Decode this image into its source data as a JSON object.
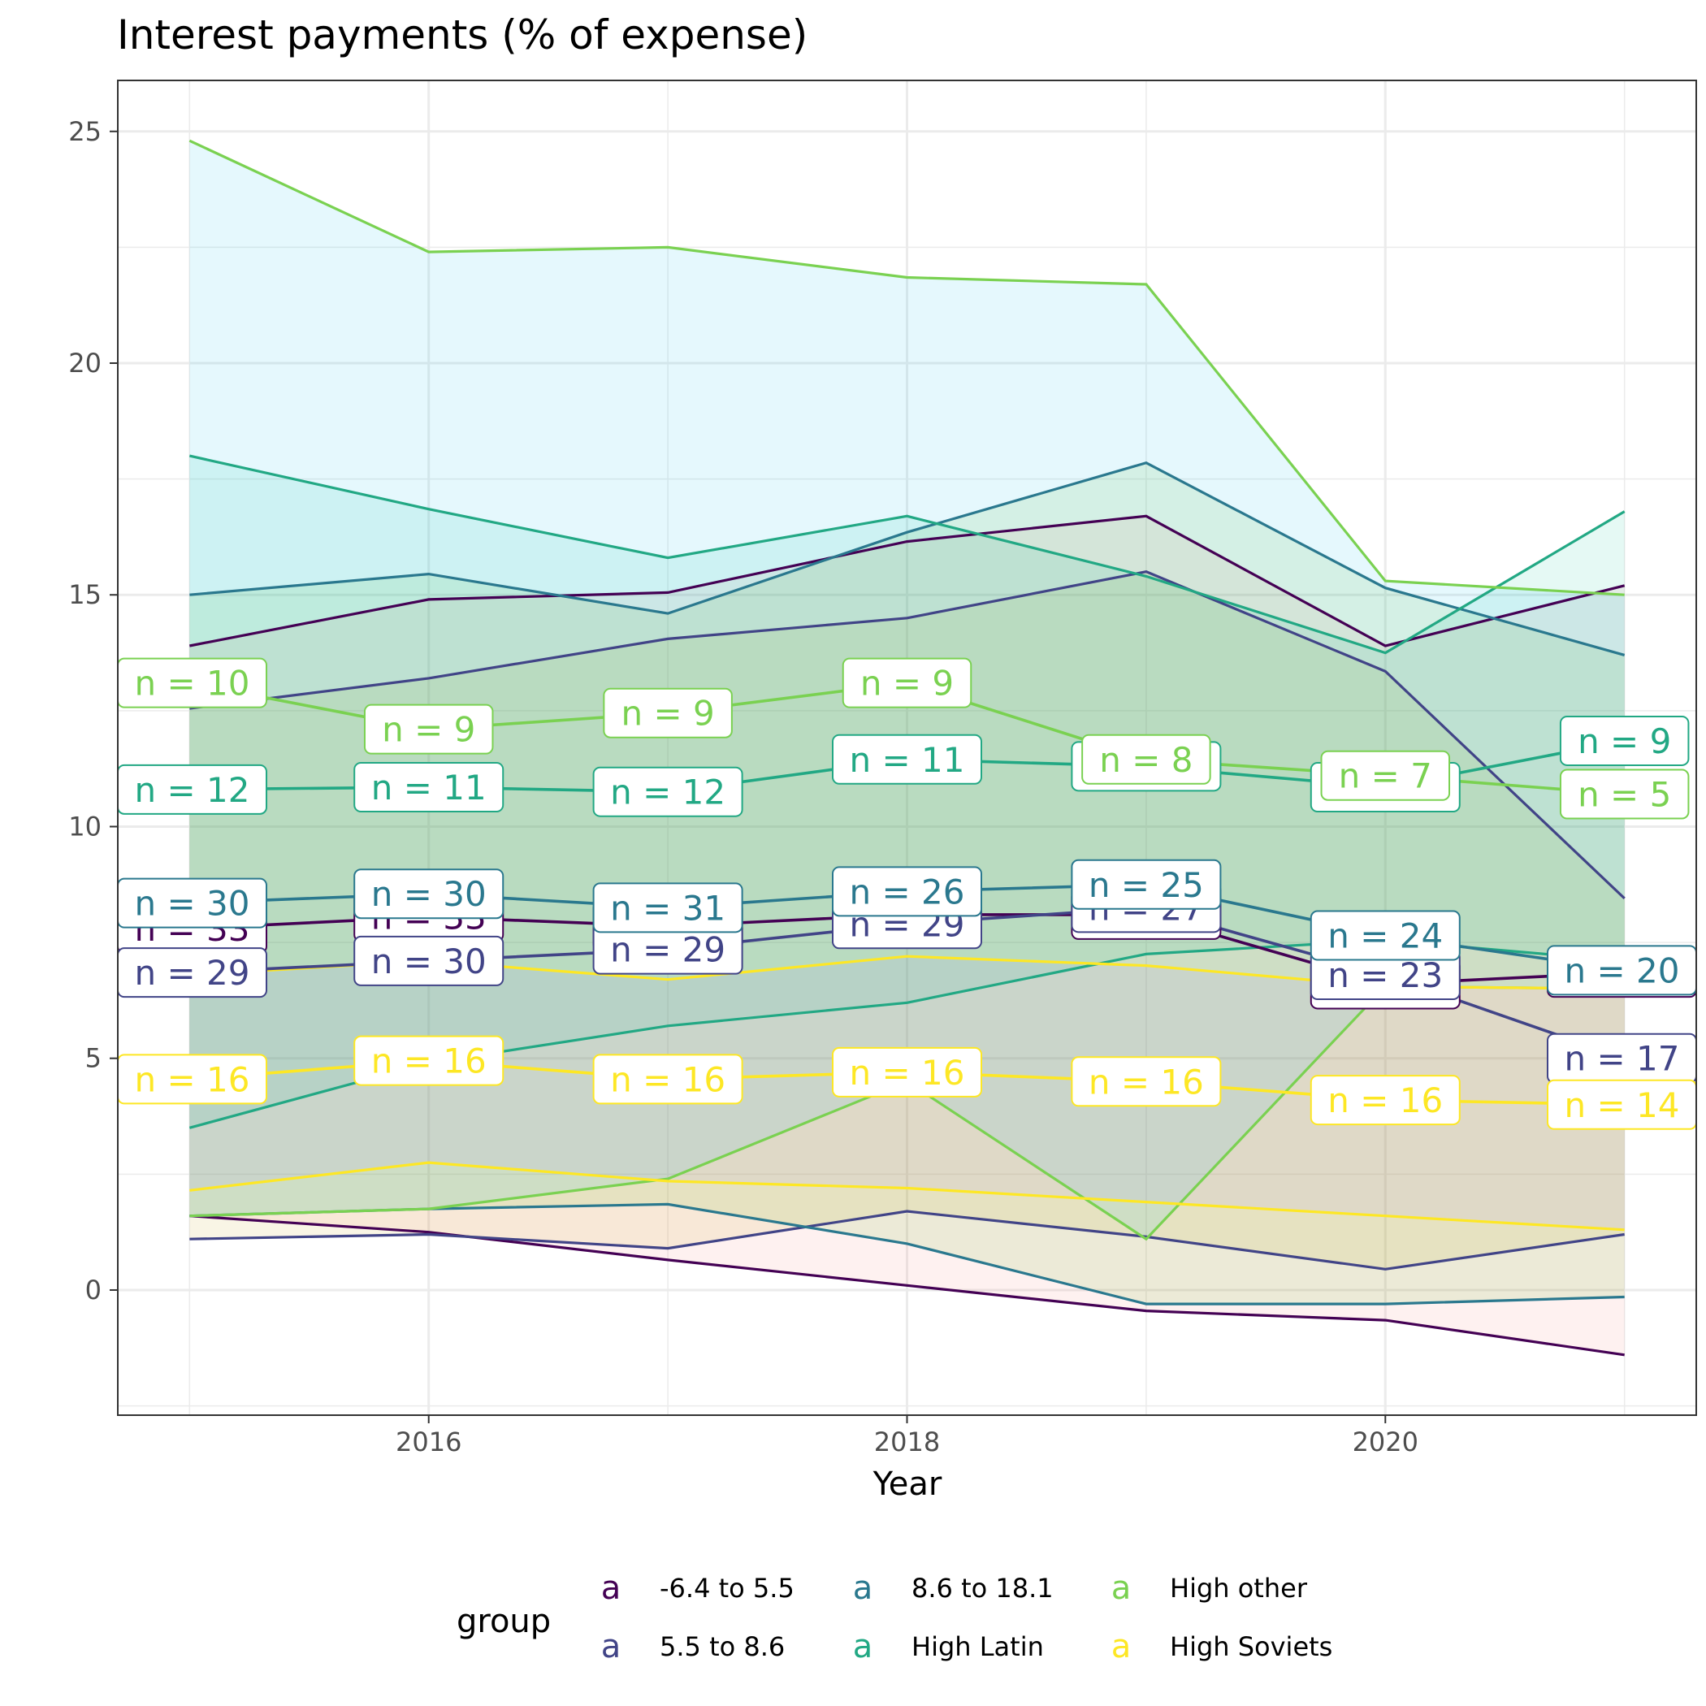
{
  "chart_data": {
    "type": "line",
    "title": "Interest payments (% of expense)",
    "xlabel": "Year",
    "ylabel": "",
    "x": [
      2015,
      2016,
      2017,
      2018,
      2019,
      2020,
      2021
    ],
    "xlim": [
      2014.7,
      2021.3
    ],
    "ylim": [
      -2.7,
      26.1
    ],
    "x_ticks": [
      2016,
      2018,
      2020
    ],
    "y_ticks": [
      0,
      5,
      10,
      15,
      20,
      25
    ],
    "grid": true,
    "legend": {
      "title": "group",
      "position": "bottom",
      "key_glyph": "a"
    },
    "series": [
      {
        "name": "-6.4 to 5.5",
        "color": "#440154",
        "ribbon_color": "#f8766d",
        "mean": [
          7.8,
          8.05,
          7.85,
          8.1,
          8.1,
          6.6,
          6.85
        ],
        "upper": [
          13.9,
          14.9,
          15.05,
          16.15,
          16.7,
          13.9,
          15.2
        ],
        "lower": [
          1.6,
          1.25,
          0.65,
          0.1,
          -0.45,
          -0.65,
          -1.4
        ],
        "n": [
          33,
          33,
          31,
          29,
          27,
          25,
          23
        ]
      },
      {
        "name": "5.5 to 8.6",
        "color": "#414487",
        "ribbon_color": "#c49a00",
        "mean": [
          6.85,
          7.1,
          7.35,
          7.9,
          8.25,
          6.8,
          5.0
        ],
        "upper": [
          12.55,
          13.2,
          14.05,
          14.5,
          15.5,
          13.35,
          8.45
        ],
        "lower": [
          1.1,
          1.2,
          0.9,
          1.7,
          1.15,
          0.45,
          1.2
        ],
        "n": [
          29,
          30,
          29,
          29,
          27,
          23,
          17
        ]
      },
      {
        "name": "8.6 to 18.1",
        "color": "#2a788e",
        "ribbon_color": "#53b400",
        "mean": [
          8.35,
          8.55,
          8.25,
          8.6,
          8.75,
          7.65,
          6.9
        ],
        "upper": [
          15.0,
          15.45,
          14.6,
          16.35,
          17.85,
          15.15,
          13.7
        ],
        "lower": [
          1.6,
          1.75,
          1.85,
          1.0,
          -0.3,
          -0.3,
          -0.15
        ],
        "n": [
          30,
          30,
          31,
          26,
          25,
          24,
          20
        ]
      },
      {
        "name": "High Latin",
        "color": "#22a884",
        "ribbon_color": "#00c094",
        "mean": [
          10.8,
          10.85,
          10.75,
          11.45,
          11.3,
          10.85,
          11.85
        ],
        "upper": [
          18.0,
          16.85,
          15.8,
          16.7,
          15.4,
          13.75,
          16.8
        ],
        "lower": [
          3.5,
          4.9,
          5.7,
          6.2,
          7.25,
          7.55,
          7.1
        ],
        "n": [
          12,
          11,
          12,
          11,
          11,
          13,
          9
        ]
      },
      {
        "name": "High other",
        "color": "#7ad151",
        "ribbon_color": "#00b6eb",
        "mean": [
          13.1,
          12.1,
          12.45,
          13.1,
          11.45,
          11.1,
          10.7
        ],
        "upper": [
          24.8,
          22.4,
          22.5,
          21.85,
          21.7,
          15.3,
          15.0
        ],
        "lower": [
          1.6,
          1.75,
          2.4,
          4.5,
          1.1,
          6.55,
          6.5
        ],
        "n": [
          10,
          9,
          9,
          9,
          8,
          7,
          5
        ]
      },
      {
        "name": "High Soviets",
        "color": "#fde725",
        "ribbon_color": "#a58aff",
        "mean": [
          4.55,
          4.95,
          4.55,
          4.7,
          4.5,
          4.1,
          4.0
        ],
        "upper": [
          6.8,
          7.1,
          6.7,
          7.2,
          7.0,
          6.55,
          6.5
        ],
        "lower": [
          2.15,
          2.75,
          2.35,
          2.2,
          1.9,
          1.6,
          1.3
        ],
        "n": [
          16,
          16,
          16,
          16,
          16,
          16,
          14
        ]
      }
    ]
  }
}
